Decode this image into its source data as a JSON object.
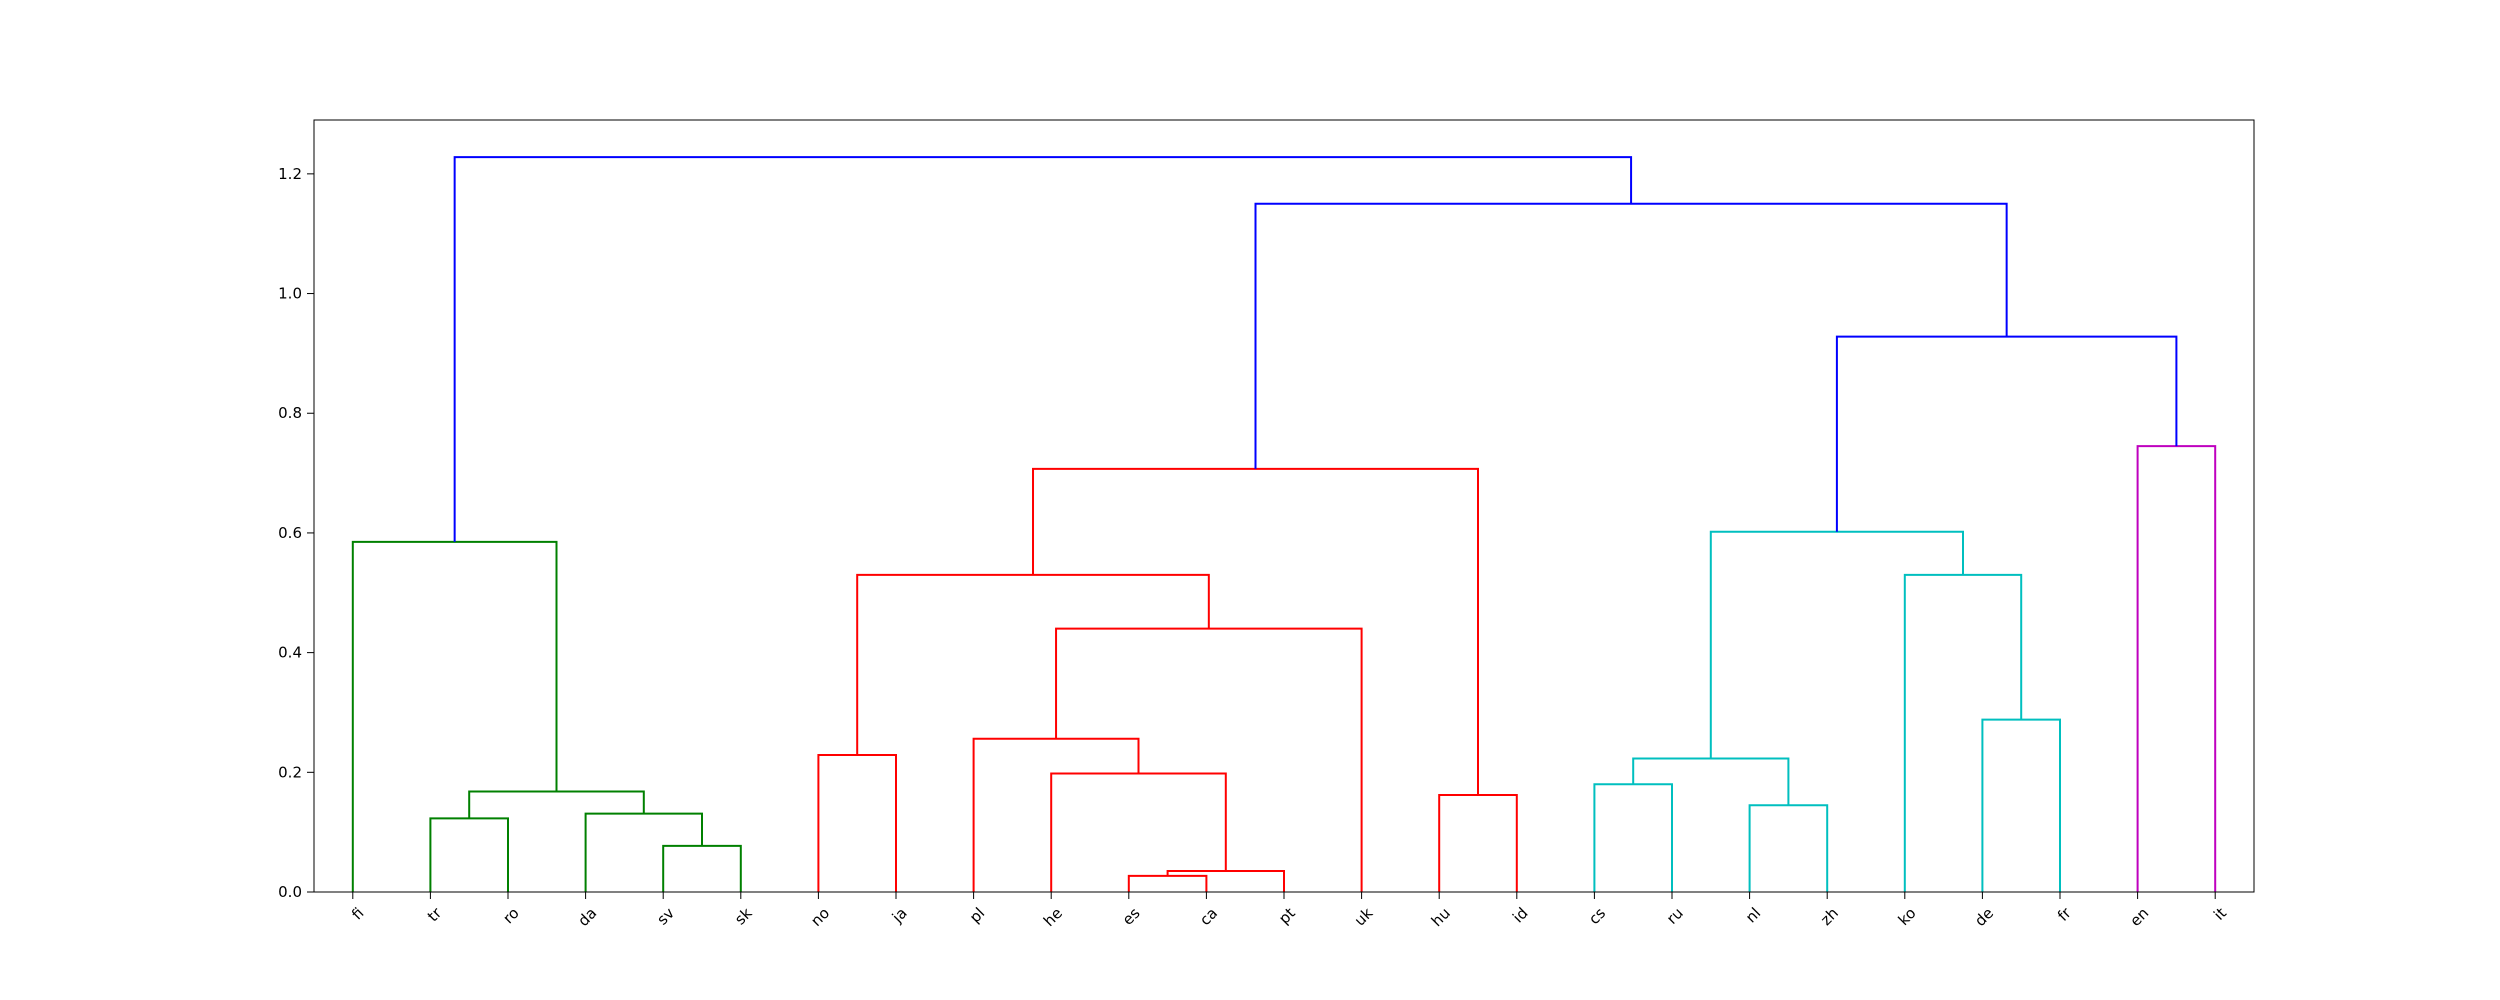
{
  "chart_data": {
    "type": "dendrogram",
    "title": "",
    "xlabel": "",
    "ylabel": "",
    "ylim": [
      0,
      1.29
    ],
    "yticks": [
      0.0,
      0.2,
      0.4,
      0.6,
      0.8,
      1.0,
      1.2
    ],
    "ytick_labels": [
      "0.0",
      "0.2",
      "0.4",
      "0.6",
      "0.8",
      "1.0",
      "1.2"
    ],
    "grid": false,
    "leaves": [
      "fi",
      "tr",
      "ro",
      "da",
      "sv",
      "sk",
      "no",
      "ja",
      "pl",
      "he",
      "es",
      "ca",
      "pt",
      "uk",
      "hu",
      "id",
      "cs",
      "ru",
      "nl",
      "zh",
      "ko",
      "de",
      "fr",
      "en",
      "it"
    ],
    "colors": {
      "green": "#008000",
      "red": "#ff0000",
      "cyan": "#00bfbf",
      "magenta": "#bf00bf",
      "blue": "#0000ff"
    },
    "merges": [
      {
        "id": "g1",
        "left": "tr",
        "right": "ro",
        "height": 0.123,
        "color": "green"
      },
      {
        "id": "g2",
        "left": "sv",
        "right": "sk",
        "height": 0.077,
        "color": "green"
      },
      {
        "id": "g3",
        "left": "da",
        "right": "g2",
        "height": 0.131,
        "color": "green"
      },
      {
        "id": "g4",
        "left": "g1",
        "right": "g3",
        "height": 0.168,
        "color": "green"
      },
      {
        "id": "g5",
        "left": "fi",
        "right": "g4",
        "height": 0.585,
        "color": "green"
      },
      {
        "id": "r1",
        "left": "no",
        "right": "ja",
        "height": 0.229,
        "color": "red"
      },
      {
        "id": "r2",
        "left": "es",
        "right": "ca",
        "height": 0.027,
        "color": "red"
      },
      {
        "id": "r3",
        "left": "r2",
        "right": "pt",
        "height": 0.035,
        "color": "red"
      },
      {
        "id": "r4",
        "left": "he",
        "right": "r3",
        "height": 0.198,
        "color": "red"
      },
      {
        "id": "r5",
        "left": "pl",
        "right": "r4",
        "height": 0.256,
        "color": "red"
      },
      {
        "id": "r6",
        "left": "r5",
        "right": "uk",
        "height": 0.44,
        "color": "red"
      },
      {
        "id": "r7",
        "left": "r1",
        "right": "r6",
        "height": 0.53,
        "color": "red"
      },
      {
        "id": "r8",
        "left": "hu",
        "right": "id",
        "height": 0.162,
        "color": "red"
      },
      {
        "id": "r9",
        "left": "r7",
        "right": "r8",
        "height": 0.707,
        "color": "red"
      },
      {
        "id": "c1",
        "left": "cs",
        "right": "ru",
        "height": 0.18,
        "color": "cyan"
      },
      {
        "id": "c2",
        "left": "nl",
        "right": "zh",
        "height": 0.145,
        "color": "cyan"
      },
      {
        "id": "c3",
        "left": "c1",
        "right": "c2",
        "height": 0.223,
        "color": "cyan"
      },
      {
        "id": "c4",
        "left": "de",
        "right": "fr",
        "height": 0.288,
        "color": "cyan"
      },
      {
        "id": "c5",
        "left": "ko",
        "right": "c4",
        "height": 0.53,
        "color": "cyan"
      },
      {
        "id": "c6",
        "left": "c3",
        "right": "c5",
        "height": 0.602,
        "color": "cyan"
      },
      {
        "id": "m1",
        "left": "en",
        "right": "it",
        "height": 0.745,
        "color": "magenta"
      },
      {
        "id": "b1",
        "left": "c6",
        "right": "m1",
        "height": 0.928,
        "color": "blue"
      },
      {
        "id": "b2",
        "left": "r9",
        "right": "b1",
        "height": 1.15,
        "color": "blue"
      },
      {
        "id": "b3",
        "left": "g5",
        "right": "b2",
        "height": 1.228,
        "color": "blue"
      }
    ]
  }
}
